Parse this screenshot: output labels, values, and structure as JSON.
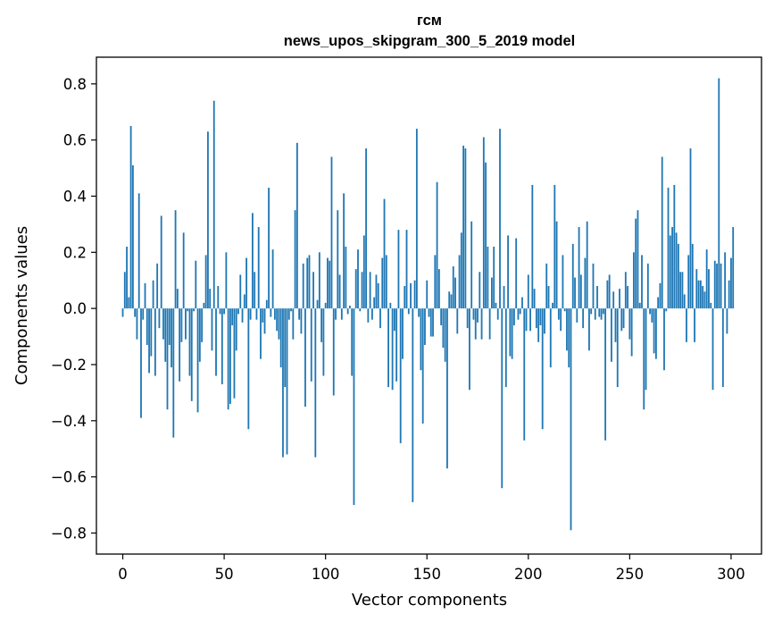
{
  "chart_data": {
    "type": "bar",
    "title": "гсм",
    "subtitle": "news_upos_skipgram_300_5_2019 model",
    "xlabel": "Vector components",
    "ylabel": "Components values",
    "xlim": [
      -13,
      315
    ],
    "ylim": [
      -0.875,
      0.895
    ],
    "xticks": [
      0,
      50,
      100,
      150,
      200,
      250,
      300
    ],
    "yticks": [
      -0.8,
      -0.6,
      -0.4,
      -0.2,
      0.0,
      0.2,
      0.4,
      0.6,
      0.8
    ],
    "ytick_labels": [
      "−0.8",
      "−0.6",
      "−0.4",
      "−0.2",
      "0.0",
      "0.2",
      "0.4",
      "0.6",
      "0.8"
    ],
    "bar_color": "#1f77b4",
    "grid": false,
    "legend": "none",
    "values": [
      -0.03,
      0.13,
      0.22,
      0.04,
      0.65,
      0.51,
      -0.03,
      -0.11,
      0.41,
      -0.39,
      -0.04,
      0.09,
      -0.13,
      -0.23,
      -0.17,
      0.1,
      -0.24,
      0.16,
      -0.07,
      0.33,
      -0.11,
      -0.19,
      -0.36,
      -0.13,
      -0.21,
      -0.46,
      0.35,
      0.07,
      -0.26,
      -0.12,
      0.27,
      -0.11,
      -0.01,
      -0.24,
      -0.33,
      -0.01,
      0.17,
      -0.37,
      -0.19,
      -0.12,
      0.02,
      0.19,
      0.63,
      0.07,
      -0.15,
      0.74,
      -0.24,
      0.08,
      -0.02,
      -0.27,
      -0.02,
      0.2,
      -0.36,
      -0.34,
      -0.06,
      -0.32,
      -0.15,
      -0.02,
      0.12,
      -0.05,
      0.05,
      0.18,
      -0.43,
      -0.04,
      0.34,
      0.13,
      -0.04,
      0.29,
      -0.18,
      -0.05,
      -0.09,
      0.03,
      0.43,
      -0.03,
      0.21,
      -0.04,
      -0.08,
      -0.11,
      -0.21,
      -0.53,
      -0.28,
      -0.52,
      -0.04,
      -0.01,
      -0.11,
      0.35,
      0.59,
      -0.04,
      -0.09,
      0.16,
      -0.35,
      0.18,
      0.19,
      -0.26,
      0.13,
      -0.53,
      0.03,
      0.2,
      -0.12,
      -0.24,
      0.02,
      0.18,
      0.17,
      0.54,
      -0.31,
      -0.04,
      0.35,
      0.12,
      -0.04,
      0.41,
      0.22,
      -0.02,
      0.01,
      -0.24,
      -0.7,
      0.14,
      0.21,
      -0.01,
      0.13,
      0.26,
      0.57,
      -0.05,
      0.13,
      -0.04,
      0.04,
      0.12,
      0.09,
      -0.07,
      0.18,
      0.39,
      0.19,
      -0.28,
      0.02,
      -0.29,
      -0.08,
      -0.26,
      0.28,
      -0.48,
      -0.18,
      0.08,
      0.28,
      -0.02,
      0.09,
      -0.69,
      0.1,
      0.64,
      -0.03,
      -0.22,
      -0.41,
      -0.13,
      0.1,
      -0.03,
      -0.1,
      -0.1,
      0.19,
      0.45,
      0.14,
      -0.06,
      -0.14,
      -0.19,
      -0.57,
      0.06,
      0.05,
      0.15,
      0.11,
      -0.09,
      0.19,
      0.27,
      0.58,
      0.57,
      -0.07,
      -0.29,
      0.31,
      -0.04,
      -0.11,
      -0.05,
      0.13,
      -0.11,
      0.61,
      0.52,
      0.22,
      -0.11,
      0.11,
      0.22,
      0.02,
      -0.04,
      0.64,
      -0.64,
      0.08,
      -0.28,
      0.26,
      -0.17,
      -0.18,
      -0.06,
      0.25,
      -0.04,
      -0.02,
      0.04,
      -0.47,
      -0.08,
      0.12,
      -0.08,
      0.44,
      0.07,
      -0.07,
      -0.12,
      -0.06,
      -0.43,
      -0.09,
      0.16,
      0.08,
      -0.21,
      0.02,
      0.44,
      0.31,
      -0.04,
      -0.08,
      0.19,
      -0.01,
      -0.15,
      -0.21,
      -0.79,
      0.23,
      0.11,
      -0.05,
      0.29,
      0.12,
      -0.07,
      0.18,
      0.31,
      -0.15,
      -0.02,
      0.16,
      -0.04,
      0.08,
      -0.03,
      -0.04,
      -0.02,
      -0.47,
      0.1,
      0.12,
      -0.19,
      0.06,
      -0.12,
      -0.28,
      0.07,
      -0.08,
      -0.07,
      0.13,
      0.08,
      -0.11,
      -0.17,
      0.2,
      0.32,
      0.35,
      0.02,
      0.19,
      -0.36,
      -0.29,
      0.16,
      -0.02,
      -0.05,
      -0.16,
      -0.18,
      0.04,
      0.09,
      0.54,
      -0.22,
      -0.01,
      0.43,
      0.26,
      0.29,
      0.44,
      0.27,
      0.23,
      0.13,
      0.13,
      0.05,
      -0.12,
      0.19,
      0.57,
      0.23,
      -0.12,
      0.14,
      0.1,
      0.1,
      0.08,
      0.06,
      0.21,
      0.14,
      0.02,
      -0.29,
      0.17,
      0.16,
      0.82,
      0.16,
      -0.28,
      0.2,
      -0.09,
      0.1,
      0.18,
      0.29
    ]
  }
}
